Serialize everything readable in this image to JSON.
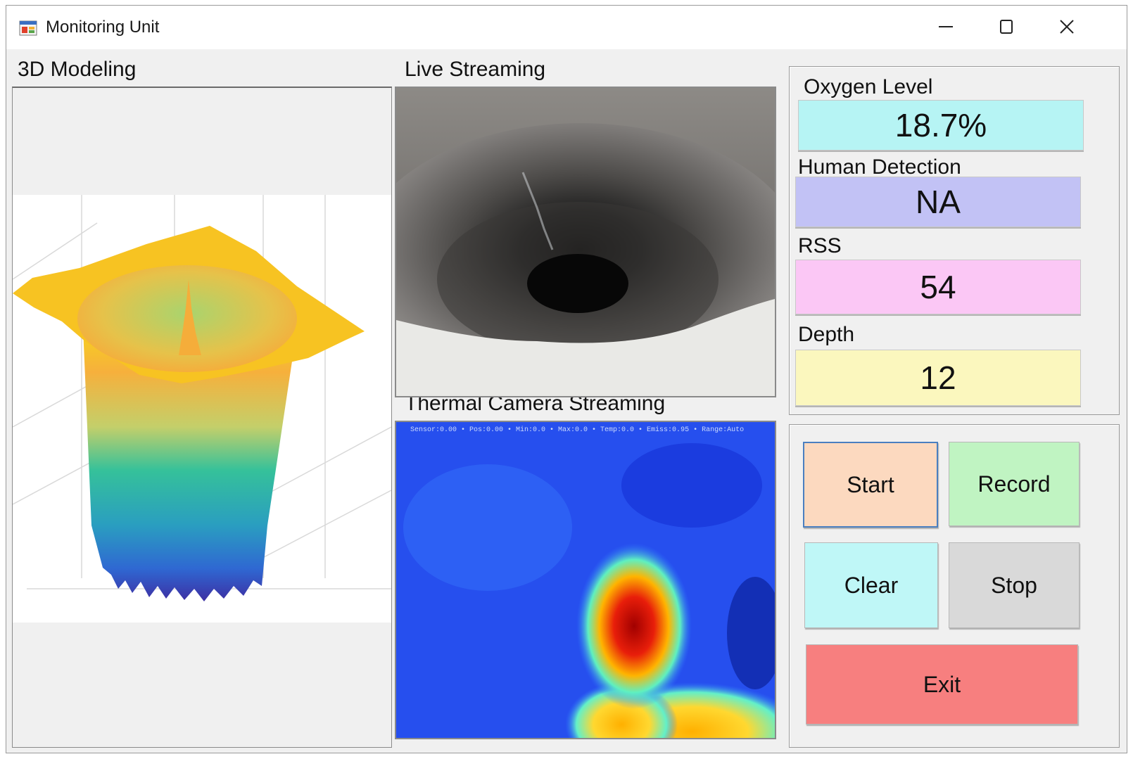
{
  "window": {
    "title": "Monitoring Unit",
    "icon": "app-window-icon",
    "controls": [
      "minimize-icon",
      "maximize-icon",
      "close-icon"
    ]
  },
  "modeling": {
    "label": "3D Modeling",
    "plot_colormap": [
      "#440154",
      "#3b528b",
      "#21918c",
      "#5ec962",
      "#fde725"
    ]
  },
  "live": {
    "label": "Live Streaming"
  },
  "thermal": {
    "label": "Thermal Camera Streaming",
    "overlay_text": "Sensor:0.00 • Pos:0.00 • Min:0.0 • Max:0.0 • Temp:0.0 • Emiss:0.95 • Range:Auto"
  },
  "sensors": {
    "oxygen": {
      "label": "Oxygen Level",
      "value": "18.7%",
      "color": "#b6f4f4"
    },
    "human": {
      "label": "Human Detection",
      "value": "NA",
      "color": "#c2c2f5"
    },
    "rss": {
      "label": "RSS",
      "value": "54",
      "color": "#fbc7f5"
    },
    "depth": {
      "label": "Depth",
      "value": "12",
      "color": "#fbf7be"
    }
  },
  "controls": {
    "start": {
      "label": "Start",
      "color": "#fcd9bf"
    },
    "record": {
      "label": "Record",
      "color": "#c0f4c2"
    },
    "clear": {
      "label": "Clear",
      "color": "#bff7f7"
    },
    "stop": {
      "label": "Stop",
      "color": "#d9d9d9"
    },
    "exit": {
      "label": "Exit",
      "color": "#f77f7f"
    }
  }
}
